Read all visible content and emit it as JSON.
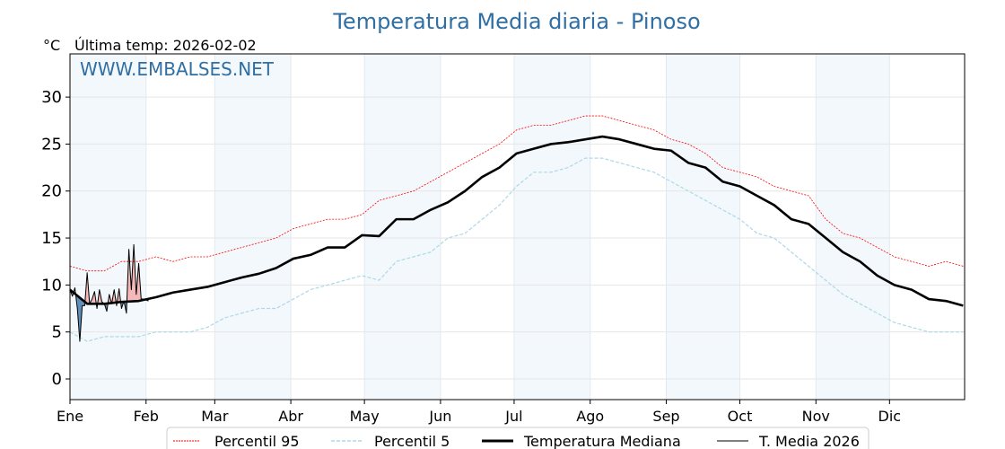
{
  "chart_data": {
    "type": "line",
    "title": "Temperatura Media diaria - Pinoso",
    "unit_label": "°C",
    "last_temp_label": "Última temp: 2026-02-02",
    "watermark": "WWW.EMBALSES.NET",
    "ylim": [
      -2.2,
      34.6
    ],
    "yticks": [
      0,
      5,
      10,
      15,
      20,
      25,
      30
    ],
    "months": [
      {
        "label": "Ene",
        "day": 0
      },
      {
        "label": "Feb",
        "day": 31
      },
      {
        "label": "Mar",
        "day": 59
      },
      {
        "label": "Abr",
        "day": 90
      },
      {
        "label": "May",
        "day": 120
      },
      {
        "label": "Jun",
        "day": 151
      },
      {
        "label": "Jul",
        "day": 181
      },
      {
        "label": "Ago",
        "day": 212
      },
      {
        "label": "Sep",
        "day": 243
      },
      {
        "label": "Oct",
        "day": 273
      },
      {
        "label": "Nov",
        "day": 304
      },
      {
        "label": "Dic",
        "day": 334
      }
    ],
    "xlim": [
      0,
      364
    ],
    "series_step_days": 7,
    "series": [
      {
        "name": "Percentil 95",
        "color": "#ff0000",
        "values": [
          12,
          11.5,
          11.5,
          12.5,
          12.5,
          13,
          12.5,
          13,
          13,
          13.5,
          14,
          14.5,
          15,
          16,
          16.5,
          17,
          17,
          17.5,
          19,
          19.5,
          20,
          21,
          22,
          23,
          24,
          25,
          26.5,
          27,
          27,
          27.5,
          28,
          28,
          27.5,
          27,
          26.5,
          25.5,
          25,
          24,
          22.5,
          22,
          21.5,
          20.5,
          20,
          19.5,
          17,
          15.5,
          15,
          14,
          13,
          12.5,
          12,
          12.5,
          12
        ]
      },
      {
        "name": "Percentil 5",
        "color": "#add8e6",
        "values": [
          5,
          4,
          4.5,
          4.5,
          4.5,
          5,
          5,
          5,
          5.5,
          6.5,
          7,
          7.5,
          7.5,
          8.5,
          9.5,
          10,
          10.5,
          11,
          10.5,
          12.5,
          13,
          13.5,
          15,
          15.5,
          17,
          18.5,
          20.5,
          22,
          22,
          22.5,
          23.5,
          23.5,
          23,
          22.5,
          22,
          21,
          20,
          19,
          18,
          17,
          15.5,
          15,
          13.5,
          12,
          10.5,
          9,
          8,
          7,
          6,
          5.5,
          5,
          5,
          5
        ]
      },
      {
        "name": "Temperatura Mediana",
        "color": "#000000",
        "values": [
          9.5,
          8,
          8,
          8.2,
          8.3,
          8.7,
          9.2,
          9.5,
          9.8,
          10.3,
          10.8,
          11.2,
          11.8,
          12.8,
          13.2,
          14,
          14,
          15.3,
          15.2,
          17,
          17,
          18,
          18.8,
          20,
          21.5,
          22.5,
          24,
          24.5,
          25,
          25.2,
          25.5,
          25.8,
          25.5,
          25,
          24.5,
          24.3,
          23,
          22.5,
          21,
          20.5,
          19.5,
          18.5,
          17,
          16.5,
          15,
          13.5,
          12.5,
          11,
          10,
          9.5,
          8.5,
          8.3,
          7.8
        ]
      },
      {
        "name": "T. Media 2026",
        "color": "#000000",
        "daily": true,
        "values": [
          9.5,
          8.8,
          9.7,
          7.5,
          4.0,
          7.8,
          7.8,
          11.3,
          8.0,
          8.5,
          9.3,
          7.5,
          9.5,
          8.2,
          8.0,
          7.2,
          9.0,
          8.0,
          9.5,
          7.8,
          9.6,
          7.5,
          8.3,
          7.0,
          13.8,
          9.5,
          14.3,
          9.0,
          12.3,
          8.5,
          8.5,
          8.4,
          8.3
        ]
      }
    ],
    "fill_above_color": "#f4b6b6",
    "fill_below_color": "#5b8db8",
    "legend_placement": "bottom-center"
  }
}
